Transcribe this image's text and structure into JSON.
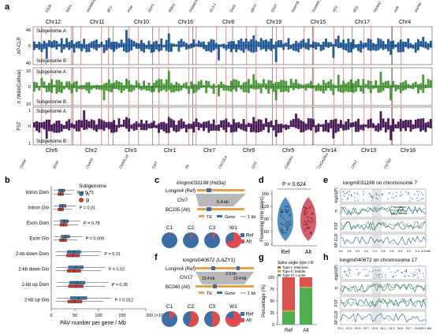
{
  "panel_labels": [
    "a",
    "b",
    "c",
    "d",
    "e",
    "f",
    "g",
    "h"
  ],
  "panel_a": {
    "top_genes": [
      "Cb2b",
      "GID1",
      "OsMADS",
      "BE1",
      "Pi34",
      "DEP1",
      "RBG1",
      "OsMADS25",
      "GL3.1",
      "GW5",
      "qSH1",
      "Ghd7",
      "OsMYB",
      "OsWRKY",
      "HD1",
      "SD1",
      "OsNAC",
      "Hd6",
      "OsPIN"
    ],
    "bottom_genes": [
      "OsRR",
      "qGW",
      "OsAP2",
      "OsSPL14",
      "DST",
      "Rc",
      "OsCOL4",
      "GS3",
      "OsBZR1",
      "OsGA20ox",
      "LAX1",
      "OsTB1"
    ],
    "top_chromosomes": [
      "Chr12",
      "Chr11",
      "Chr10",
      "Chr16",
      "Chr8",
      "Chr19",
      "Chr15",
      "Chr17",
      "Chr4"
    ],
    "bottom_chromosomes": [
      "Chr6",
      "Chr2",
      "Chr3",
      "Chr1",
      "Chr7",
      "Chr9",
      "Chr5",
      "Chr14",
      "Chr13",
      "Chr18"
    ],
    "tracks": [
      {
        "ylabel": "XP-CLR",
        "top_label": "Subgenome A",
        "bottom_label": "Subgenome B",
        "ticks_top": [
          "40",
          "0"
        ],
        "ticks_bottom": [
          "40"
        ],
        "color": "#1f5a9a"
      },
      {
        "ylabel": "π (Wild/Cultivar)",
        "top_label": "Subgenome A",
        "bottom_label": "Subgenome B",
        "ticks_top": [
          "16",
          "0"
        ],
        "ticks_bottom": [
          "16"
        ],
        "color": "#4a9a3a"
      },
      {
        "ylabel": "FST",
        "top_label": "Subgenome A",
        "bottom_label": "Subgenome B",
        "ticks_top": [
          "1",
          "0"
        ],
        "ticks_bottom": [
          "1"
        ],
        "color": "#4a1a5a"
      }
    ]
  },
  "panel_b": {
    "legend_title": "Subgenome",
    "legend": [
      {
        "name": "A",
        "color": "#3a6ea5"
      },
      {
        "name": "B",
        "color": "#c0392b"
      }
    ],
    "xlabel": "PAV number per gene / Mb",
    "xticks": [
      "0",
      "50",
      "100",
      "150",
      "200 (×10⁻³)"
    ],
    "chart_data": {
      "type": "box",
      "categories": [
        "Intron Dom",
        "Intron Glo",
        "Exon Dom",
        "Exon Glo",
        "2-kb down Dom",
        "2-kb down Glo",
        "2-kb up Dom",
        "2-kb up Glo"
      ],
      "series": [
        {
          "name": "A",
          "values": [
            22,
            24,
            28,
            30,
            48,
            52,
            55,
            58
          ]
        },
        {
          "name": "B",
          "values": [
            20,
            20,
            26,
            25,
            46,
            48,
            52,
            50
          ]
        }
      ],
      "pvalues": [
        "P = 0.73",
        "P = 0.01",
        "P = 0.78",
        "P = 0.009",
        "P = 0.31",
        "P = 0.02",
        "P = 0.35",
        "P = 0.012"
      ]
    }
  },
  "panel_c": {
    "title": "longmi031198 (Hd3a)",
    "row1": "Longmi4 (Ref)",
    "row2": "Chr7",
    "row3": "BC235 (Alt)",
    "len": "6.4 kb",
    "legend": [
      "TE",
      "Gene",
      "1 kb"
    ],
    "pies": [
      {
        "label": "C1",
        "ref": 0.98
      },
      {
        "label": "C2",
        "ref": 0.95
      },
      {
        "label": "C3",
        "ref": 0.92
      },
      {
        "label": "W1",
        "ref": 0.3
      }
    ],
    "pie_legend": [
      "Ref",
      "Alt"
    ]
  },
  "panel_d": {
    "p": "P = 0.624",
    "ylabel": "Flowering time (days)",
    "yticks": [
      "150",
      "120",
      "90",
      "60",
      "30"
    ],
    "categories": [
      "Ref",
      "Alt"
    ],
    "colors": [
      "#3a7ab5",
      "#d04050"
    ]
  },
  "panel_e": {
    "title": "longmi031198 on chromosome 7",
    "tracks": [
      "-log10(P)",
      "π",
      "FST",
      "XP-CLR"
    ],
    "xticks": [
      "1.6",
      "1.8",
      "2.0",
      "2.2",
      "2.4",
      "2.6",
      "2.8",
      "3.0",
      "3.2",
      "3.4",
      "3.6 Mb"
    ],
    "legend": [
      "Population",
      "Wild",
      "Cultivar"
    ]
  },
  "panel_f": {
    "title": "longmi040672 (LAZY1)",
    "row1": "Longmi4 (Ref)",
    "row2": "Chr17",
    "row3": "BC040 (Alt)",
    "len1": "13.4 kb",
    "len2": "13.4 kb",
    "len3": "2.9 kb",
    "legend": [
      "TE",
      "Gene",
      "1 kb"
    ],
    "pies": [
      {
        "label": "C1",
        "ref": 0.85
      },
      {
        "label": "C2",
        "ref": 0.45
      },
      {
        "label": "C3",
        "ref": 0.5
      },
      {
        "label": "W1",
        "ref": 0.2
      }
    ],
    "pie_legend": [
      "Ref",
      "Alt"
    ]
  },
  "panel_g": {
    "legend_title": "Spike angle type I-III",
    "legend": [
      {
        "name": "Type I: Intensive",
        "color": "#d9534f"
      },
      {
        "name": "Type II: Middle",
        "color": "#e8a14a"
      },
      {
        "name": "Type III: Loose",
        "color": "#4cae4c"
      }
    ],
    "ylabel": "Percentage (%)",
    "yticks": [
      "100",
      "75",
      "50",
      "25",
      "0"
    ],
    "chart_data": {
      "type": "bar",
      "categories": [
        "Ref",
        "Alt"
      ],
      "series": [
        {
          "name": "Type I: Intensive",
          "values": [
            70,
            20
          ]
        },
        {
          "name": "Type II: Middle",
          "values": [
            2,
            2
          ]
        },
        {
          "name": "Type III: Loose",
          "values": [
            28,
            78
          ]
        }
      ]
    }
  },
  "panel_h": {
    "title": "longmi040672 on chromosome 17",
    "tracks": [
      "-log10(P)",
      "π",
      "FST",
      "XP-CLR"
    ],
    "xticks": [
      "23.1",
      "23.3",
      "23.5",
      "23.7",
      "23.9",
      "24.1",
      "24.3",
      "24.5",
      "24.7",
      "24.9",
      "25.1 Mb"
    ]
  }
}
